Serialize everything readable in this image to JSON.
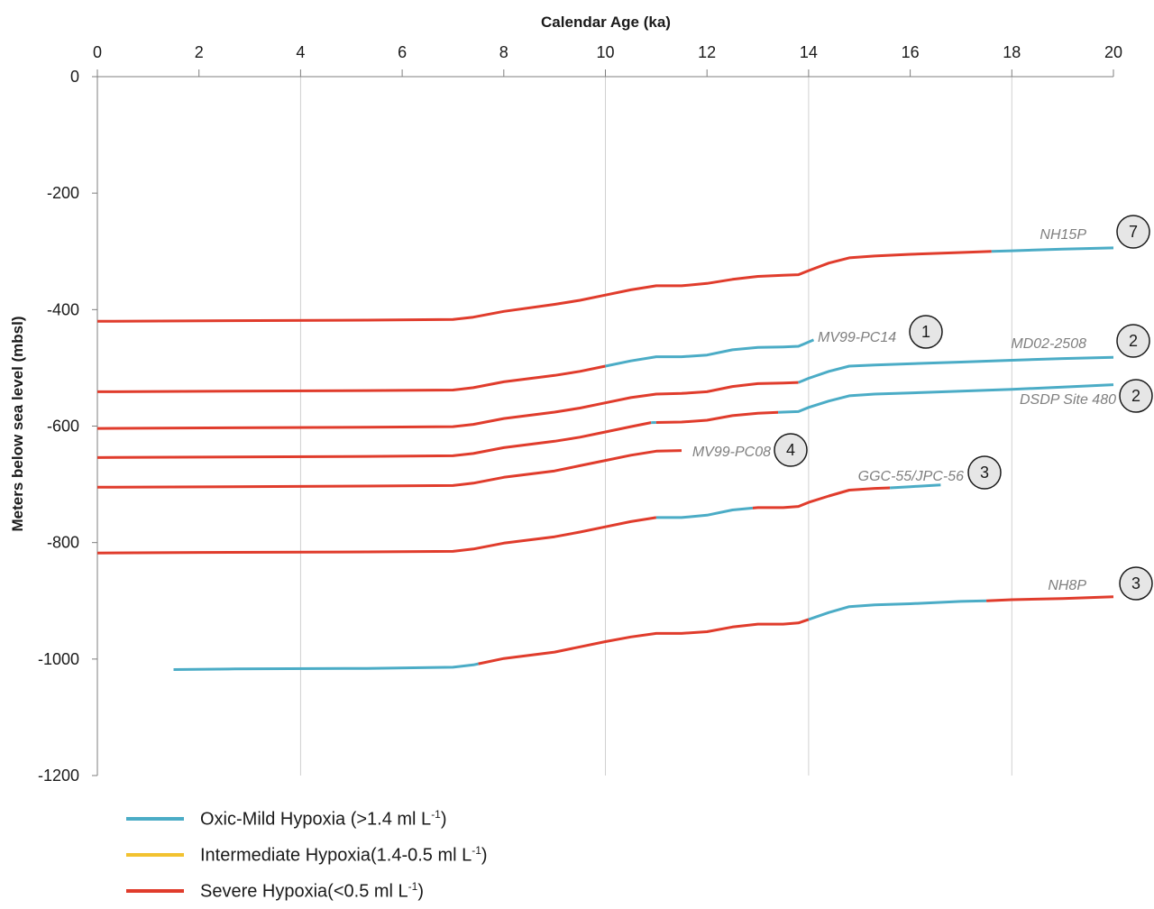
{
  "chart_data": {
    "type": "line",
    "title": "",
    "xlabel": "Calendar Age (ka)",
    "ylabel": "Meters below sea level (mbsl)",
    "xlim": [
      0,
      20
    ],
    "ylim": [
      -1200,
      0
    ],
    "x_ticks": [
      0,
      2,
      4,
      6,
      8,
      10,
      12,
      14,
      16,
      18,
      20
    ],
    "y_ticks": [
      0,
      -200,
      -400,
      -600,
      -800,
      -1000,
      -1200
    ],
    "x_axis_position": "top",
    "grid": "vertical gridlines at 4, 10, 14, 18 ka",
    "colors": {
      "oxic": "#4bacc6",
      "intermediate": "#f2c230",
      "severe": "#e03c2c"
    },
    "legend": [
      {
        "key": "oxic",
        "label": "Oxic-Mild Hypoxia (>1.4 ml L",
        "sup": "-1",
        "tail": ")"
      },
      {
        "key": "intermediate",
        "label": "Intermediate Hypoxia(1.4-0.5 ml L",
        "sup": "-1",
        "tail": ")"
      },
      {
        "key": "severe",
        "label": "Severe Hypoxia(<0.5 ml L",
        "sup": "-1",
        "tail": ")"
      }
    ],
    "series": [
      {
        "name": "NH15P",
        "badge": "7",
        "points": [
          [
            0,
            -420
          ],
          [
            2.6,
            -419
          ],
          [
            5.3,
            -418
          ],
          [
            7,
            -417
          ],
          [
            7.4,
            -413
          ],
          [
            8,
            -403
          ],
          [
            9,
            -391
          ],
          [
            9.5,
            -384
          ],
          [
            10,
            -375
          ],
          [
            10.5,
            -366
          ],
          [
            11,
            -359
          ],
          [
            11.5,
            -359
          ],
          [
            12,
            -355
          ],
          [
            12.5,
            -348
          ],
          [
            13,
            -343
          ],
          [
            13.5,
            -341
          ],
          [
            13.8,
            -340
          ],
          [
            14,
            -333
          ],
          [
            14.4,
            -320
          ],
          [
            14.8,
            -311
          ],
          [
            15.3,
            -308
          ],
          [
            16,
            -305
          ],
          [
            17,
            -302
          ],
          [
            17.6,
            -300
          ],
          [
            18,
            -299
          ],
          [
            19,
            -296
          ],
          [
            20,
            -294
          ]
        ],
        "segments": [
          {
            "from": 0,
            "to": 17.6,
            "hypoxia": "severe"
          },
          {
            "from": 17.6,
            "to": 20,
            "hypoxia": "oxic"
          }
        ]
      },
      {
        "name": "MV99-PC14",
        "badge": "1",
        "points": [
          [
            0,
            -541
          ],
          [
            2.6,
            -540
          ],
          [
            5.3,
            -539
          ],
          [
            7,
            -538
          ],
          [
            7.4,
            -534
          ],
          [
            8,
            -524
          ],
          [
            9,
            -513
          ],
          [
            9.5,
            -506
          ],
          [
            10,
            -497
          ],
          [
            10.5,
            -488
          ],
          [
            11,
            -481
          ],
          [
            11.5,
            -481
          ],
          [
            12,
            -478
          ],
          [
            12.5,
            -469
          ],
          [
            13,
            -465
          ],
          [
            13.5,
            -464
          ],
          [
            13.8,
            -463
          ],
          [
            14.1,
            -452
          ]
        ],
        "segments": [
          {
            "from": 0,
            "to": 10,
            "hypoxia": "severe"
          },
          {
            "from": 10,
            "to": 14.1,
            "hypoxia": "oxic"
          }
        ]
      },
      {
        "name": "MD02-2508",
        "badge": "2",
        "points": [
          [
            0,
            -604
          ],
          [
            2.6,
            -603
          ],
          [
            5.3,
            -602
          ],
          [
            7,
            -601
          ],
          [
            7.4,
            -597
          ],
          [
            8,
            -587
          ],
          [
            9,
            -576
          ],
          [
            9.5,
            -569
          ],
          [
            10,
            -560
          ],
          [
            10.5,
            -551
          ],
          [
            11,
            -545
          ],
          [
            11.5,
            -544
          ],
          [
            12,
            -541
          ],
          [
            12.5,
            -532
          ],
          [
            13,
            -527
          ],
          [
            13.5,
            -526
          ],
          [
            13.8,
            -525
          ],
          [
            14,
            -518
          ],
          [
            14.4,
            -506
          ],
          [
            14.8,
            -497
          ],
          [
            15.3,
            -495
          ],
          [
            16,
            -493
          ],
          [
            17,
            -490
          ],
          [
            18,
            -487
          ],
          [
            19,
            -484
          ],
          [
            20,
            -482
          ]
        ],
        "segments": [
          {
            "from": 0,
            "to": 13.8,
            "hypoxia": "severe"
          },
          {
            "from": 13.8,
            "to": 20,
            "hypoxia": "oxic"
          }
        ]
      },
      {
        "name": "DSDP Site 480",
        "badge": "2",
        "points": [
          [
            0,
            -654
          ],
          [
            2.6,
            -653
          ],
          [
            5.3,
            -652
          ],
          [
            7,
            -651
          ],
          [
            7.4,
            -647
          ],
          [
            8,
            -637
          ],
          [
            9,
            -626
          ],
          [
            9.5,
            -619
          ],
          [
            10,
            -610
          ],
          [
            10.5,
            -601
          ],
          [
            10.9,
            -594
          ],
          [
            11.5,
            -593
          ],
          [
            12,
            -590
          ],
          [
            12.5,
            -582
          ],
          [
            13,
            -578
          ],
          [
            13.5,
            -576
          ],
          [
            13.8,
            -575
          ],
          [
            14,
            -568
          ],
          [
            14.4,
            -557
          ],
          [
            14.8,
            -548
          ],
          [
            15.3,
            -545
          ],
          [
            16,
            -543
          ],
          [
            17,
            -540
          ],
          [
            18,
            -537
          ],
          [
            19,
            -533
          ],
          [
            20,
            -529
          ]
        ],
        "segments": [
          {
            "from": 0,
            "to": 10.9,
            "hypoxia": "severe"
          },
          {
            "from": 10.9,
            "to": 11,
            "hypoxia": "oxic"
          },
          {
            "from": 11,
            "to": 13.4,
            "hypoxia": "severe"
          },
          {
            "from": 13.4,
            "to": 20,
            "hypoxia": "oxic"
          }
        ]
      },
      {
        "name": "MV99-PC08",
        "badge": "4",
        "points": [
          [
            0,
            -705
          ],
          [
            2.6,
            -704
          ],
          [
            5.3,
            -703
          ],
          [
            7,
            -702
          ],
          [
            7.4,
            -698
          ],
          [
            8,
            -688
          ],
          [
            9,
            -677
          ],
          [
            9.5,
            -668
          ],
          [
            10,
            -659
          ],
          [
            10.5,
            -650
          ],
          [
            11,
            -643
          ],
          [
            11.5,
            -642
          ]
        ],
        "segments": [
          {
            "from": 0,
            "to": 11.5,
            "hypoxia": "severe"
          }
        ]
      },
      {
        "name": "GGC-55/JPC-56",
        "badge": "3",
        "points": [
          [
            0,
            -818
          ],
          [
            2,
            -817
          ],
          [
            5.3,
            -816
          ],
          [
            7,
            -815
          ],
          [
            7.4,
            -811
          ],
          [
            8,
            -801
          ],
          [
            9,
            -790
          ],
          [
            9.5,
            -782
          ],
          [
            10,
            -773
          ],
          [
            10.5,
            -764
          ],
          [
            11,
            -757
          ],
          [
            11.5,
            -757
          ],
          [
            12,
            -753
          ],
          [
            12.5,
            -744
          ],
          [
            13,
            -740
          ],
          [
            13.5,
            -740
          ],
          [
            13.8,
            -738
          ],
          [
            14,
            -731
          ],
          [
            14.4,
            -720
          ],
          [
            14.8,
            -710
          ],
          [
            15.3,
            -707
          ],
          [
            15.6,
            -706
          ],
          [
            16,
            -704
          ],
          [
            16.6,
            -701
          ]
        ],
        "segments": [
          {
            "from": 0,
            "to": 11,
            "hypoxia": "severe"
          },
          {
            "from": 11,
            "to": 12.9,
            "hypoxia": "oxic"
          },
          {
            "from": 12.9,
            "to": 15.6,
            "hypoxia": "severe"
          },
          {
            "from": 15.6,
            "to": 16.6,
            "hypoxia": "oxic"
          }
        ]
      },
      {
        "name": "NH8P",
        "badge": "3",
        "points": [
          [
            1.5,
            -1018
          ],
          [
            2.7,
            -1017
          ],
          [
            5.3,
            -1016
          ],
          [
            7,
            -1014
          ],
          [
            7.4,
            -1010
          ],
          [
            8,
            -999
          ],
          [
            9,
            -988
          ],
          [
            9.5,
            -979
          ],
          [
            10,
            -970
          ],
          [
            10.5,
            -962
          ],
          [
            11,
            -956
          ],
          [
            11.5,
            -956
          ],
          [
            12,
            -953
          ],
          [
            12.5,
            -945
          ],
          [
            13,
            -940
          ],
          [
            13.5,
            -940
          ],
          [
            13.8,
            -938
          ],
          [
            14,
            -932
          ],
          [
            14.4,
            -920
          ],
          [
            14.8,
            -910
          ],
          [
            15.3,
            -907
          ],
          [
            16,
            -905
          ],
          [
            17,
            -901
          ],
          [
            17.5,
            -900
          ],
          [
            18,
            -898
          ],
          [
            19,
            -896
          ],
          [
            20,
            -893
          ]
        ],
        "segments": [
          {
            "from": 1.5,
            "to": 7.5,
            "hypoxia": "oxic"
          },
          {
            "from": 7.5,
            "to": 14,
            "hypoxia": "severe"
          },
          {
            "from": 14,
            "to": 17.5,
            "hypoxia": "oxic"
          },
          {
            "from": 17.5,
            "to": 20,
            "hypoxia": "severe"
          }
        ]
      }
    ]
  }
}
